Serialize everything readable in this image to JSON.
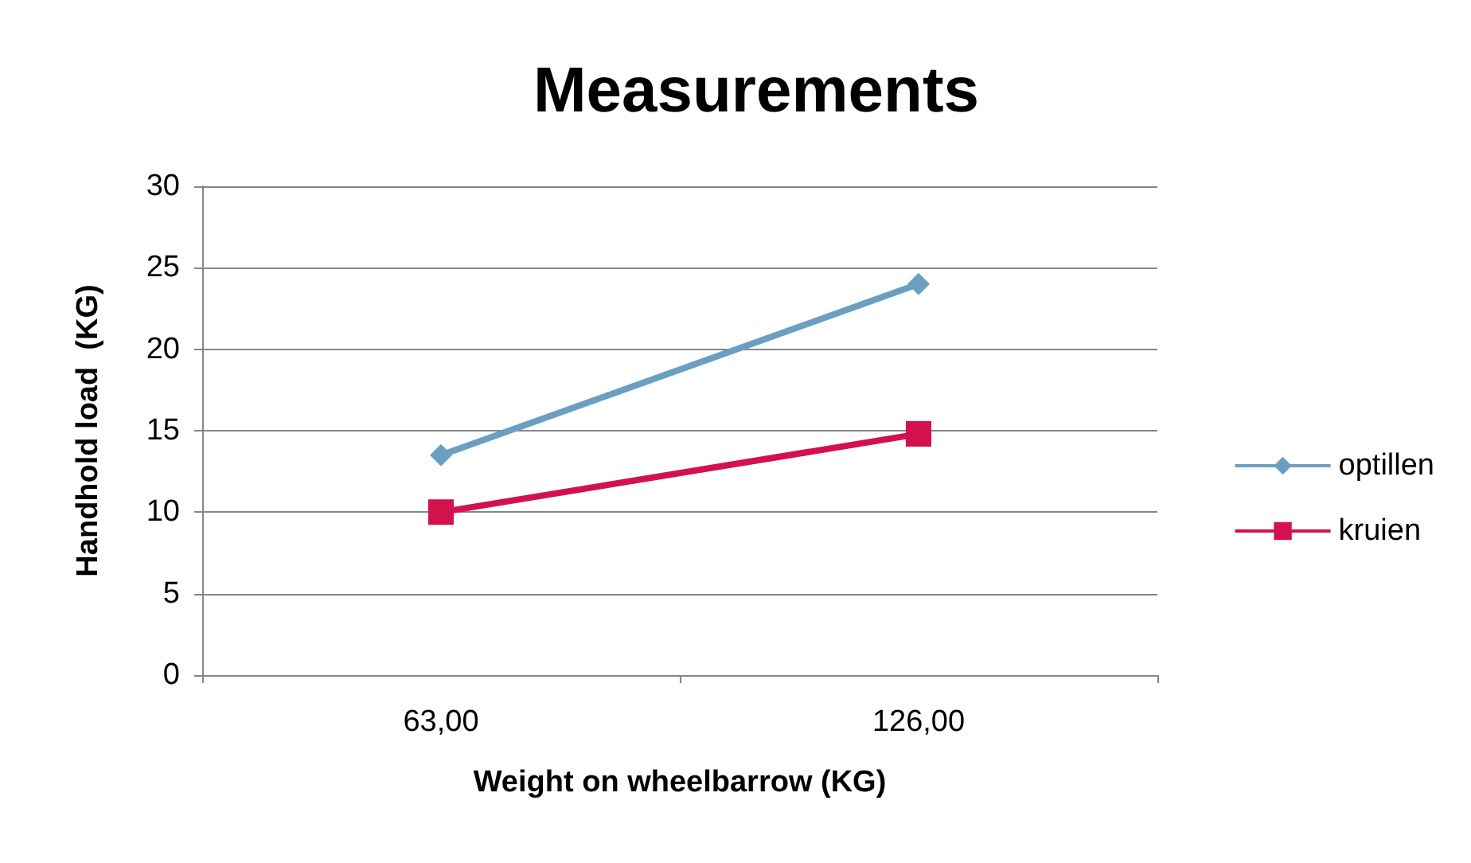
{
  "chart_data": {
    "type": "line",
    "title": "Measurements",
    "xlabel": "Weight on wheelbarrow (KG)",
    "ylabel": "Handhold load  (KG)",
    "categories": [
      "63,00",
      "126,00"
    ],
    "series": [
      {
        "name": "optillen",
        "color": "#6a9fc2",
        "values": [
          13.5,
          24
        ],
        "marker": "diamond"
      },
      {
        "name": "kruien",
        "color": "#d3114d",
        "values": [
          10,
          14.8
        ],
        "marker": "square"
      }
    ],
    "ylim": [
      0,
      30
    ],
    "yticks": [
      0,
      5,
      10,
      15,
      20,
      25,
      30
    ],
    "grid": "y",
    "legend": "right",
    "line_style": "solid"
  }
}
